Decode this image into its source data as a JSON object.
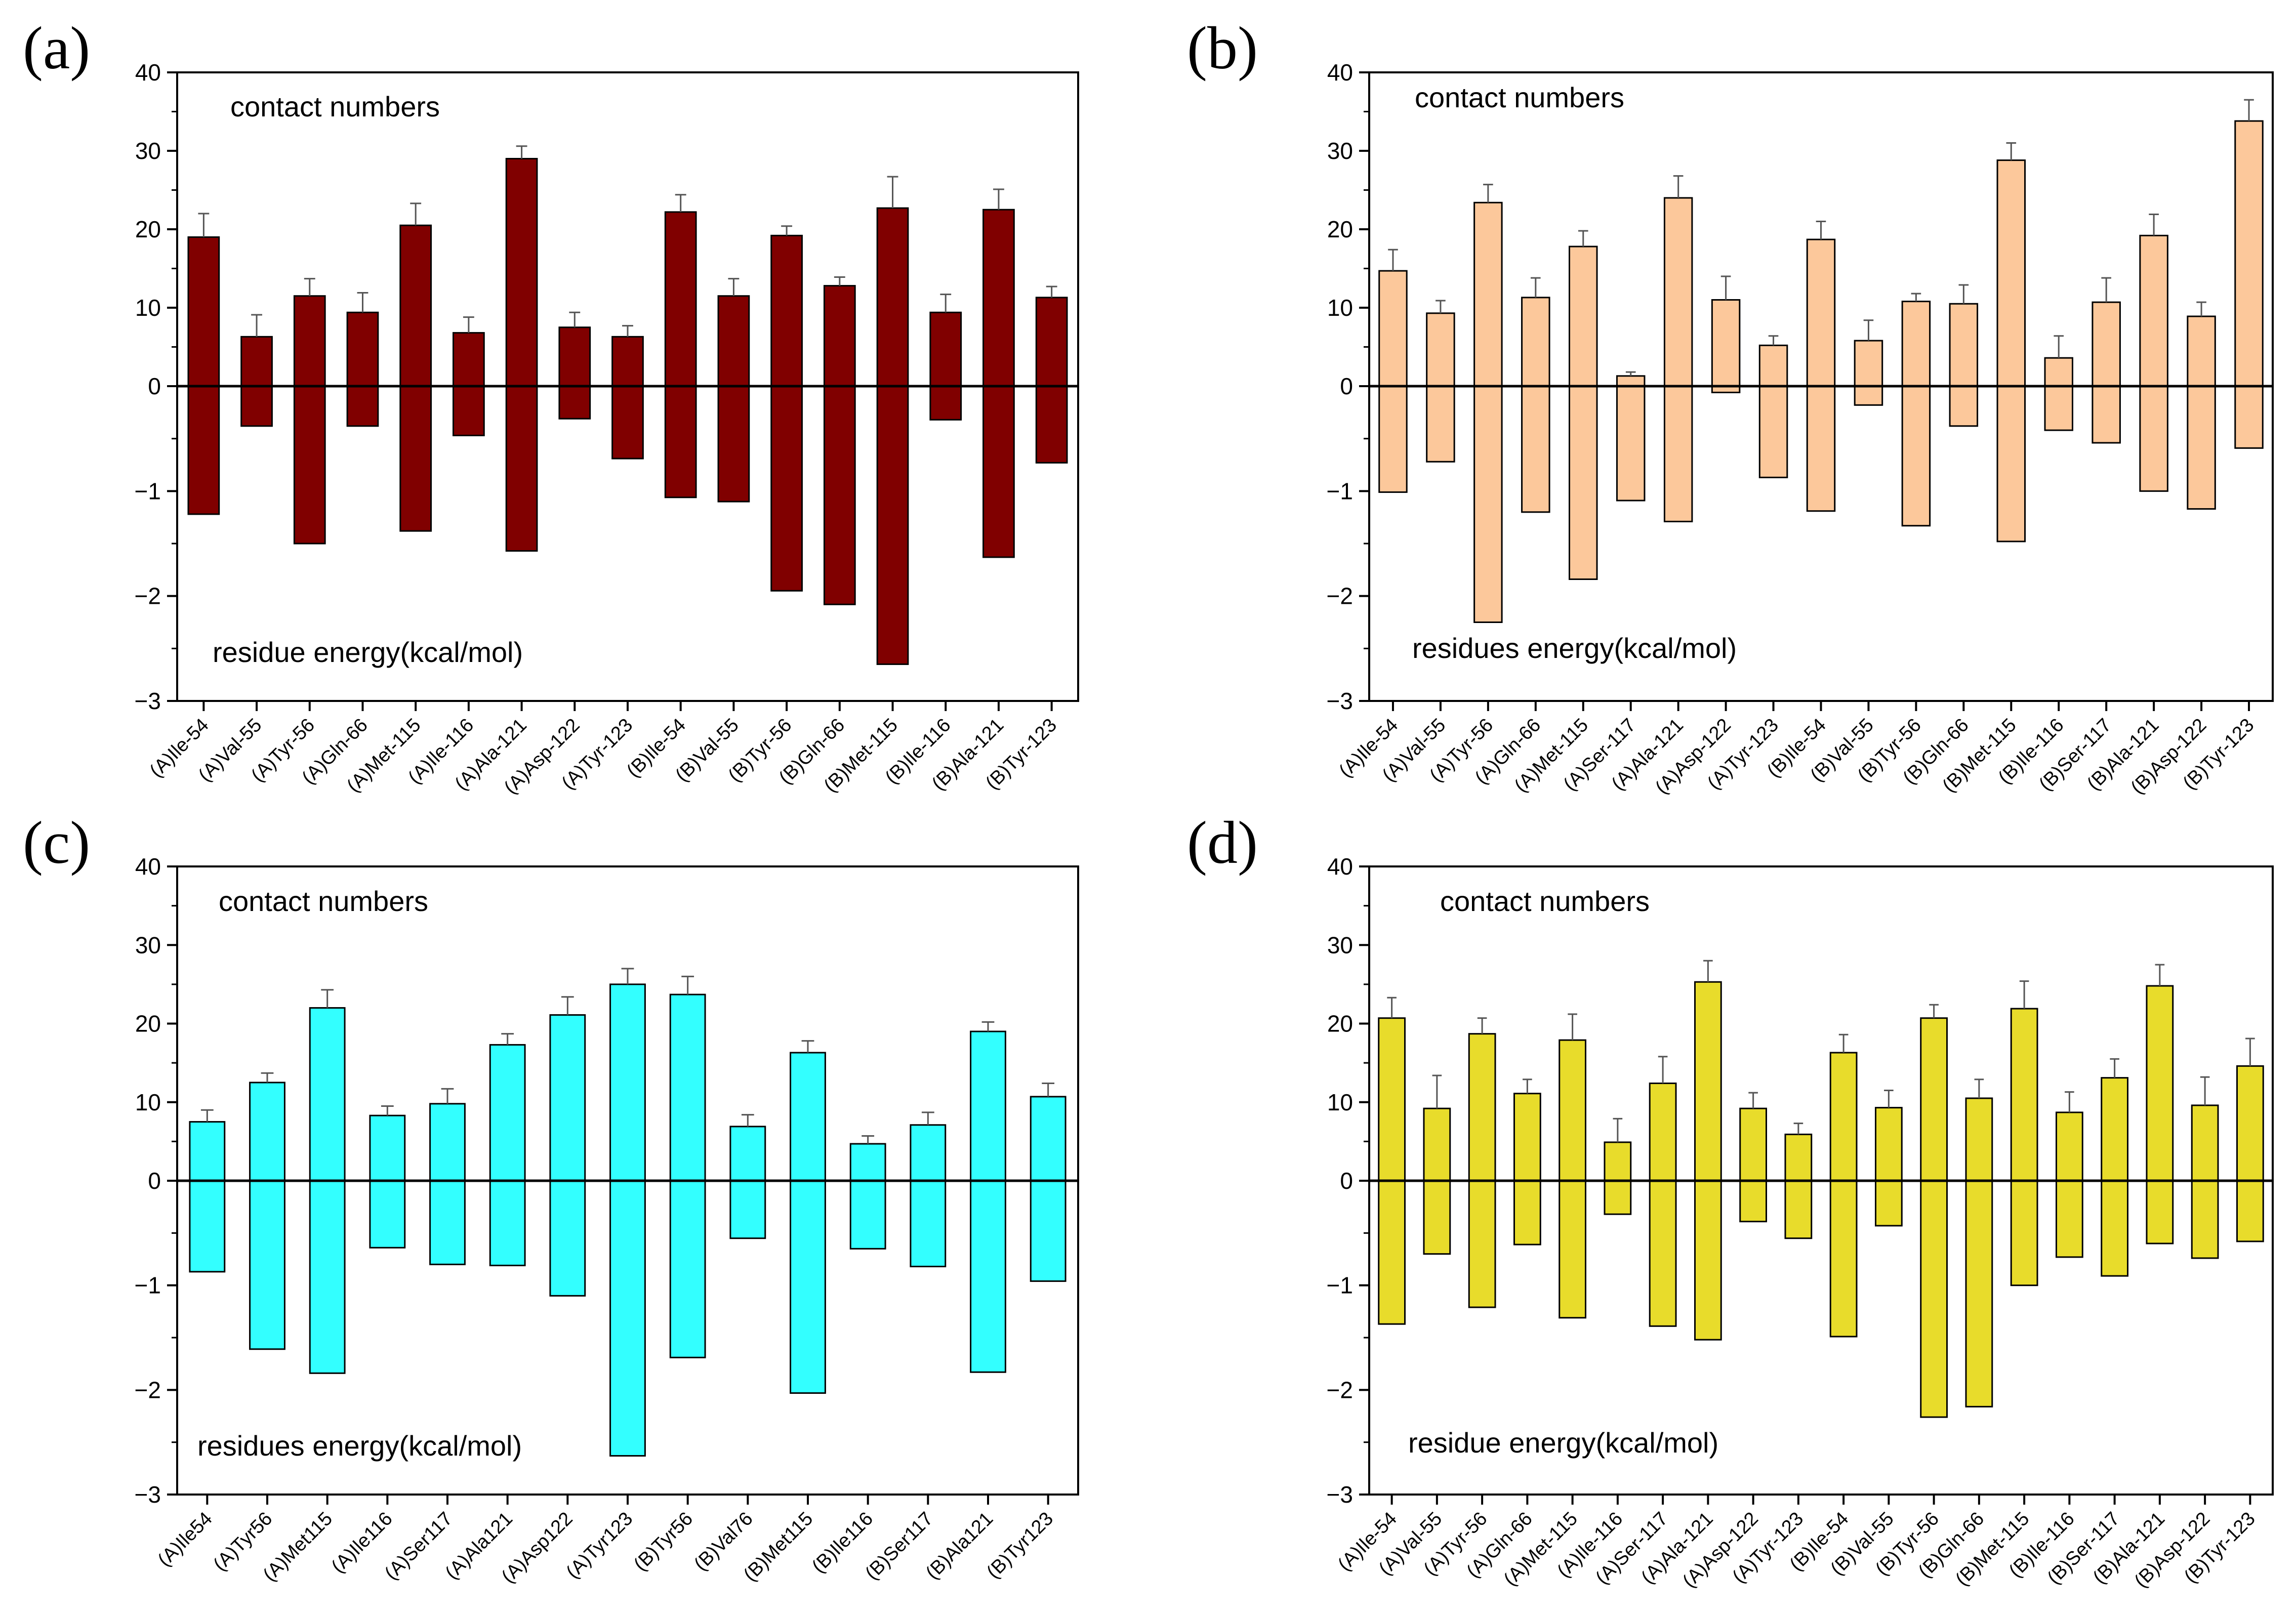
{
  "chart_data": [
    {
      "type": "bar",
      "panel": "(a)",
      "top_label": "contact numbers",
      "bottom_label": "residue energy(kcal/mol)",
      "top_axis": {
        "ylim": [
          0,
          40
        ],
        "ticks": [
          "0",
          "10",
          "20",
          "30",
          "40"
        ]
      },
      "bottom_axis": {
        "ylim": [
          -3,
          0
        ],
        "ticks": [
          "0",
          "−1",
          "−2",
          "−3"
        ]
      },
      "color": "#800000",
      "categories": [
        "(A)Ile-54",
        "(A)Val-55",
        "(A)Tyr-56",
        "(A)Gln-66",
        "(A)Met-115",
        "(A)Ile-116",
        "(A)Ala-121",
        "(A)Asp-122",
        "(A)Tyr-123",
        "(B)Ile-54",
        "(B)Val-55",
        "(B)Tyr-56",
        "(B)Gln-66",
        "(B)Met-115",
        "(B)Ile-116",
        "(B)Ala-121",
        "(B)Tyr-123"
      ],
      "contact_values": [
        19,
        6.3,
        11.5,
        9.4,
        20.5,
        6.8,
        29,
        7.5,
        6.3,
        22.2,
        11.5,
        19.2,
        12.8,
        22.7,
        9.4,
        22.5,
        11.3
      ],
      "contact_errors": [
        3,
        2.8,
        2.2,
        2.5,
        2.8,
        2,
        1.6,
        1.9,
        1.4,
        2.2,
        2.2,
        1.2,
        1.1,
        4,
        2.3,
        2.6,
        1.4
      ],
      "energy_values": [
        -1.22,
        -0.38,
        -1.5,
        -0.38,
        -1.38,
        -0.47,
        -1.57,
        -0.31,
        -0.69,
        -1.06,
        -1.1,
        -1.95,
        -2.08,
        -2.65,
        -0.32,
        -1.63,
        -0.73
      ]
    },
    {
      "type": "bar",
      "panel": "(b)",
      "top_label": "contact numbers",
      "bottom_label": "residues energy(kcal/mol)",
      "top_axis": {
        "ylim": [
          0,
          40
        ],
        "ticks": [
          "0",
          "10",
          "20",
          "30",
          "40"
        ]
      },
      "bottom_axis": {
        "ylim": [
          -3,
          0
        ],
        "ticks": [
          "0",
          "−1",
          "−2",
          "−3"
        ]
      },
      "color": "#FCC89B",
      "categories": [
        "(A)Ile-54",
        "(A)Val-55",
        "(A)Tyr-56",
        "(A)Gln-66",
        "(A)Met-115",
        "(A)Ser-117",
        "(A)Ala-121",
        "(A)Asp-122",
        "(A)Tyr-123",
        "(B)Ile-54",
        "(B)Val-55",
        "(B)Tyr-56",
        "(B)Gln-66",
        "(B)Met-115",
        "(B)Ile-116",
        "(B)Ser-117",
        "(B)Ala-121",
        "(B)Asp-122",
        "(B)Tyr-123"
      ],
      "contact_values": [
        14.7,
        9.3,
        23.4,
        11.3,
        17.8,
        1.3,
        24,
        11,
        5.2,
        18.7,
        5.8,
        10.8,
        10.5,
        28.8,
        3.6,
        10.7,
        19.2,
        8.9,
        33.8
      ],
      "contact_errors": [
        2.7,
        1.6,
        2.3,
        2.5,
        2,
        0.5,
        2.8,
        3,
        1.2,
        2.3,
        2.6,
        1,
        2.4,
        2.2,
        2.8,
        3.1,
        2.7,
        1.8,
        2.7
      ],
      "energy_values": [
        -1.01,
        -0.72,
        -2.25,
        -1.2,
        -1.84,
        -1.09,
        -1.29,
        -0.06,
        -0.87,
        -1.19,
        -0.18,
        -1.33,
        -0.38,
        -1.48,
        -0.42,
        -0.54,
        -1,
        -1.17,
        -0.59
      ]
    },
    {
      "type": "bar",
      "panel": "(c)",
      "top_label": "contact numbers",
      "bottom_label": "residues energy(kcal/mol)",
      "top_axis": {
        "ylim": [
          0,
          40
        ],
        "ticks": [
          "0",
          "10",
          "20",
          "30",
          "40"
        ]
      },
      "bottom_axis": {
        "ylim": [
          -3,
          0
        ],
        "ticks": [
          "0",
          "−1",
          "−2",
          "−3"
        ]
      },
      "color": "#33FFFF",
      "categories": [
        "(A)Ile54",
        "(A)Tyr56",
        "(A)Met115",
        "(A)Ile116",
        "(A)Ser117",
        "(A)Ala121",
        "(A)Asp122",
        "(A)Tyr123",
        "(B)Tyr56",
        "(B)Val76",
        "(B)Met115",
        "(B)Ile116",
        "(B)Ser117",
        "(B)Ala121",
        "(B)Tyr123"
      ],
      "contact_values": [
        7.5,
        12.5,
        22,
        8.3,
        9.8,
        17.3,
        21.1,
        25,
        23.7,
        6.9,
        16.3,
        4.7,
        7.1,
        19,
        10.7
      ],
      "contact_errors": [
        1.5,
        1.2,
        2.3,
        1.2,
        1.9,
        1.4,
        2.3,
        2,
        2.3,
        1.5,
        1.5,
        1,
        1.6,
        1.2,
        1.7
      ],
      "energy_values": [
        -0.87,
        -1.61,
        -1.84,
        -0.64,
        -0.8,
        -0.81,
        -1.1,
        -2.63,
        -1.69,
        -0.55,
        -2.03,
        -0.65,
        -0.82,
        -1.83,
        -0.96
      ]
    },
    {
      "type": "bar",
      "panel": "(d)",
      "top_label": "contact numbers",
      "bottom_label": "residue energy(kcal/mol)",
      "top_axis": {
        "ylim": [
          0,
          40
        ],
        "ticks": [
          "0",
          "10",
          "20",
          "30",
          "40"
        ]
      },
      "bottom_axis": {
        "ylim": [
          -3,
          0
        ],
        "ticks": [
          "0",
          "−1",
          "−2",
          "−3"
        ]
      },
      "color": "#E8DC2B",
      "categories": [
        "(A)Ile-54",
        "(A)Val-55",
        "(A)Tyr-56",
        "(A)Gln-66",
        "(A)Met-115",
        "(A)Ile-116",
        "(A)Ser-117",
        "(A)Ala-121",
        "(A)Asp-122",
        "(A)Tyr-123",
        "(B)Ile-54",
        "(B)Val-55",
        "(B)Tyr-56",
        "(B)Gln-66",
        "(B)Met-115",
        "(B)Ile-116",
        "(B)Ser-117",
        "(B)Ala-121",
        "(B)Asp-122",
        "(B)Tyr-123"
      ],
      "contact_values": [
        20.7,
        9.2,
        18.7,
        11.1,
        17.9,
        4.9,
        12.4,
        25.3,
        9.2,
        5.9,
        16.3,
        9.3,
        20.7,
        10.5,
        21.9,
        8.7,
        13.1,
        24.8,
        9.6,
        14.6
      ],
      "contact_errors": [
        2.6,
        4.2,
        2,
        1.8,
        3.3,
        3,
        3.4,
        2.7,
        2,
        1.4,
        2.3,
        2.2,
        1.7,
        2.4,
        3.5,
        2.6,
        2.4,
        2.7,
        3.6,
        3.5
      ],
      "energy_values": [
        -1.37,
        -0.7,
        -1.21,
        -0.61,
        -1.31,
        -0.32,
        -1.39,
        -1.52,
        -0.39,
        -0.55,
        -1.49,
        -0.43,
        -2.26,
        -2.16,
        -1.0,
        -0.73,
        -0.91,
        -0.6,
        -0.74,
        -0.58
      ]
    }
  ]
}
